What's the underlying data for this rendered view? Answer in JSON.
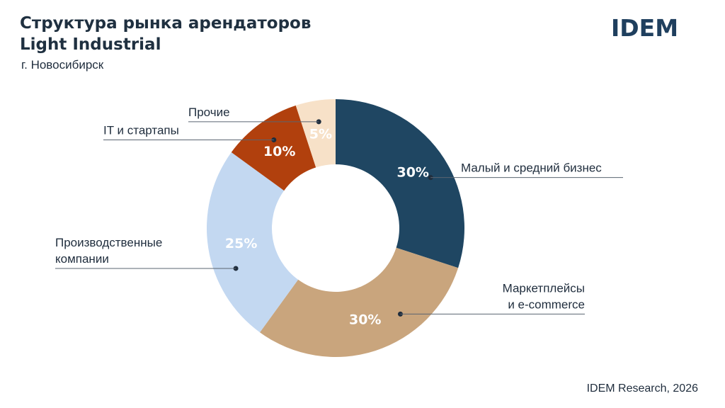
{
  "header": {
    "title_line1": "Структура рынка арендаторов",
    "title_line2": "Light Industrial",
    "subtitle": "г. Новосибирск"
  },
  "logo": {
    "text": "IDEM",
    "color": "#1f3f5e"
  },
  "footer": {
    "source": "IDEM Research, 2026"
  },
  "chart_data": {
    "type": "pie",
    "donut": true,
    "legend": "none",
    "categories": [
      "Малый и средний бизнес",
      "Маркетплейсы и e-commerce",
      "Производственные компании",
      "IT и стартапы",
      "Прочие"
    ],
    "label_lines": [
      [
        "Малый и средний бизнес"
      ],
      [
        "Маркетплейсы",
        "и e-commerce"
      ],
      [
        "Производственные",
        "компании"
      ],
      [
        "IT и стартапы"
      ],
      [
        "Прочие"
      ]
    ],
    "values": [
      30,
      30,
      25,
      10,
      5
    ],
    "value_labels": [
      "30%",
      "30%",
      "25%",
      "10%",
      "5%"
    ],
    "colors": [
      "#1f4662",
      "#c9a57d",
      "#c3d8f1",
      "#b1400d",
      "#f7e1c8"
    ],
    "value_label_colors": [
      "#ffffff",
      "#ffffff",
      "#ffffff",
      "#ffffff",
      "#ffffff"
    ]
  }
}
